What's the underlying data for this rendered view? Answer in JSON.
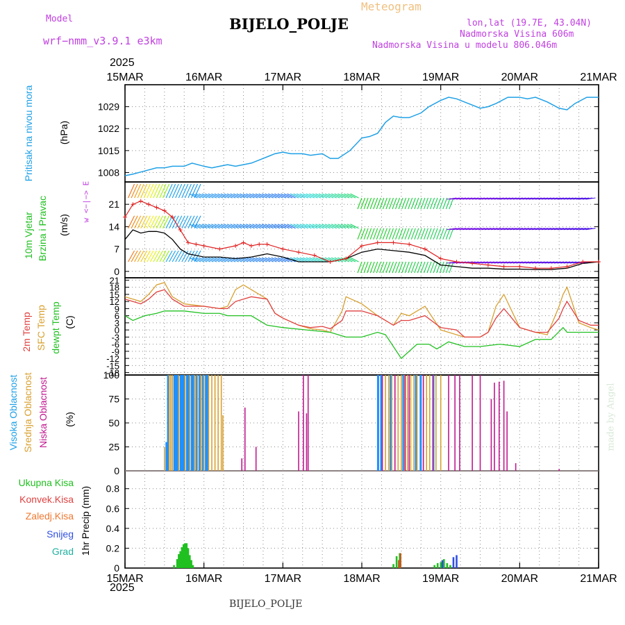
{
  "header": {
    "model_label": "Model",
    "model_name": "wrf−nmm_v3.9.1  e3km",
    "station": "BIJELO_POLJE",
    "chart_kind": "Meteogram",
    "lonlat": "lon,lat (19.7E, 43.04N)",
    "elevation": "Nadmorska Visina 606m",
    "model_elevation": "Nadmorska Visina u modelu 806.046m",
    "footer_station": "BIJELO_POLJE",
    "credit": "made by Angel"
  },
  "time_axis": {
    "year": "2025",
    "ticks": [
      "15MAR",
      "16MAR",
      "17MAR",
      "18MAR",
      "19MAR",
      "20MAR",
      "21MAR"
    ]
  },
  "colors": {
    "pressure": "#1ea0e6",
    "wind_speed": "#000000",
    "gust": "#e02020",
    "temp2m": "#e04040",
    "sfc": "#d8a030",
    "dew": "#20c020",
    "cloud_high": "#1e90ff",
    "cloud_mid": "#d8a030",
    "cloud_low": "#c01890",
    "precip_total": "#20c020",
    "precip_conv": "#e04040",
    "precip_snow": "#3050e0",
    "precip_grad": "#20b0a0"
  },
  "panels": {
    "pressure": {
      "label1": "Pritisak na nivou mora",
      "unit": "(hPa)"
    },
    "wind": {
      "label1": "10m Vjetar",
      "label2": "Brzina i Pravac",
      "unit": "(m/s)",
      "compass": "w <−|−> E"
    },
    "temp": {
      "label1": "2m Temp",
      "label2": "SFC Temp",
      "label3": "dewpt Temp",
      "unit": "(C)"
    },
    "cloud": {
      "label1": "Visoka Oblacnost",
      "label2": "Srednja Oblacnost",
      "label3": "Niska Oblacnost",
      "unit": "(%)"
    },
    "precip": {
      "legend": [
        "Ukupna Kisa",
        "Konvek.Kisa",
        "Zaledj.Kisa",
        "Snijeg",
        "Grad"
      ],
      "unit": "1hr Precip (mm)"
    }
  },
  "chart_data": [
    {
      "type": "line",
      "title": "Pritisak na nivou mora",
      "ylabel": "(hPa)",
      "x_unit": "days since 15MAR 00Z",
      "xlim": [
        0,
        6
      ],
      "yticks": [
        1008,
        1015,
        1022,
        1029
      ],
      "ylim": [
        1005,
        1036
      ],
      "series": [
        {
          "name": "MSLP",
          "x": [
            0,
            0.1,
            0.25,
            0.4,
            0.5,
            0.6,
            0.75,
            0.85,
            1.0,
            1.1,
            1.2,
            1.3,
            1.4,
            1.6,
            1.8,
            1.9,
            2.0,
            2.1,
            2.25,
            2.35,
            2.5,
            2.6,
            2.7,
            2.85,
            3.0,
            3.1,
            3.2,
            3.3,
            3.4,
            3.5,
            3.6,
            3.75,
            3.85,
            4.0,
            4.1,
            4.2,
            4.35,
            4.5,
            4.6,
            4.7,
            4.85,
            5.0,
            5.1,
            5.2,
            5.35,
            5.5,
            5.6,
            5.7,
            5.85,
            6.0
          ],
          "values": [
            1007,
            1007.5,
            1008.5,
            1009.5,
            1009.5,
            1010,
            1010,
            1011,
            1010,
            1009.5,
            1010,
            1010.5,
            1010,
            1011,
            1013,
            1014,
            1014.5,
            1014,
            1014,
            1013.5,
            1014,
            1012.5,
            1012.5,
            1015,
            1019,
            1019.5,
            1020.5,
            1024,
            1026,
            1025.5,
            1025.5,
            1027,
            1029,
            1031,
            1032,
            1031.5,
            1030,
            1028.5,
            1029,
            1030,
            1032,
            1032,
            1031.5,
            1032,
            1030.5,
            1028.5,
            1028,
            1030,
            1032,
            1032
          ]
        }
      ]
    },
    {
      "type": "line",
      "title": "10m Vjetar Brzina i Pravac",
      "ylabel": "(m/s)",
      "x_unit": "days since 15MAR 00Z",
      "xlim": [
        0,
        6
      ],
      "yticks": [
        0,
        7,
        14,
        21
      ],
      "ylim": [
        -2,
        28
      ],
      "series": [
        {
          "name": "speed",
          "x": [
            0,
            0.1,
            0.2,
            0.3,
            0.4,
            0.5,
            0.6,
            0.7,
            0.8,
            0.9,
            1.0,
            1.2,
            1.4,
            1.6,
            1.8,
            2.0,
            2.2,
            2.4,
            2.6,
            2.8,
            3.0,
            3.2,
            3.4,
            3.6,
            3.8,
            4.0,
            4.2,
            4.4,
            4.6,
            4.8,
            5.0,
            5.2,
            5.4,
            5.6,
            5.8,
            6.0
          ],
          "values": [
            10,
            13,
            12,
            12.5,
            12.5,
            12,
            10,
            7,
            5.5,
            5,
            4.5,
            4.5,
            4,
            4.5,
            5.5,
            4.5,
            3,
            3,
            3,
            4,
            6,
            7,
            6.5,
            6,
            5,
            2,
            1.5,
            1,
            1,
            0.7,
            0.7,
            0.6,
            0.6,
            1,
            2.5,
            3
          ]
        },
        {
          "name": "gust",
          "x": [
            0,
            0.1,
            0.2,
            0.3,
            0.4,
            0.5,
            0.6,
            0.7,
            0.8,
            0.9,
            1.0,
            1.2,
            1.4,
            1.5,
            1.6,
            1.7,
            1.8,
            2.0,
            2.2,
            2.4,
            2.6,
            2.8,
            3.0,
            3.2,
            3.4,
            3.6,
            3.8,
            4.0,
            4.2,
            4.4,
            4.6,
            4.8,
            5.0,
            5.2,
            5.4,
            5.6,
            5.8,
            6.0
          ],
          "values": [
            17,
            21,
            22,
            21,
            20,
            19,
            17,
            13,
            9,
            8.5,
            8,
            7,
            8,
            9,
            8,
            8.5,
            8.5,
            7,
            6,
            5,
            3,
            4,
            8,
            9,
            9,
            8.5,
            7,
            4,
            3,
            2.5,
            2,
            1.5,
            1.5,
            1,
            1,
            1.5,
            3,
            3
          ]
        }
      ]
    },
    {
      "type": "line",
      "title": "2m Temp / SFC Temp / dewpt Temp",
      "ylabel": "(C)",
      "x_unit": "days since 15MAR 00Z",
      "xlim": [
        0,
        6
      ],
      "yticks": [
        21,
        18,
        15,
        12,
        9,
        6,
        3,
        0,
        -3,
        -6,
        -9,
        -12,
        -15,
        -18
      ],
      "ylim": [
        -19,
        22
      ],
      "series": [
        {
          "name": "2m Temp",
          "x": [
            0,
            0.1,
            0.2,
            0.3,
            0.4,
            0.5,
            0.6,
            0.75,
            1.0,
            1.2,
            1.3,
            1.4,
            1.5,
            1.6,
            1.8,
            1.9,
            2.0,
            2.2,
            2.35,
            2.5,
            2.6,
            2.75,
            2.8,
            3.0,
            3.2,
            3.35,
            3.4,
            3.5,
            3.6,
            3.7,
            3.8,
            4.0,
            4.2,
            4.3,
            4.4,
            4.5,
            4.6,
            4.7,
            4.8,
            5.0,
            5.2,
            5.35,
            5.5,
            5.55,
            5.6,
            5.75,
            5.9,
            6.0
          ],
          "values": [
            13,
            12,
            11,
            13,
            16,
            17,
            13,
            10,
            10,
            9,
            9,
            12,
            13,
            14,
            13,
            7,
            5,
            2,
            1,
            1.5,
            0.5,
            4,
            8,
            8,
            6,
            3,
            2,
            4,
            4,
            5,
            6,
            1,
            0,
            -3,
            -3,
            -3,
            -1,
            5,
            9,
            1,
            -1,
            -1,
            5,
            9,
            12,
            4,
            2,
            2
          ]
        },
        {
          "name": "SFC Temp",
          "x": [
            0,
            0.1,
            0.2,
            0.3,
            0.4,
            0.5,
            0.6,
            0.75,
            1.0,
            1.2,
            1.3,
            1.4,
            1.5,
            1.6,
            1.8,
            1.9,
            2.0,
            2.2,
            2.35,
            2.5,
            2.6,
            2.75,
            2.8,
            3.0,
            3.2,
            3.35,
            3.4,
            3.5,
            3.6,
            3.7,
            3.8,
            4.0,
            4.2,
            4.3,
            4.4,
            4.5,
            4.6,
            4.7,
            4.8,
            5.0,
            5.2,
            5.35,
            5.5,
            5.55,
            5.6,
            5.75,
            5.9,
            6.0
          ],
          "values": [
            14,
            13,
            12,
            15,
            19,
            20,
            14,
            11,
            10,
            9,
            10,
            17,
            19,
            17,
            13,
            7,
            5,
            2,
            0.5,
            0,
            -1,
            8,
            14,
            11,
            6,
            3,
            2,
            7,
            6,
            8,
            10,
            0,
            -2,
            -3,
            -3,
            -3,
            -1,
            10,
            15,
            1,
            -1,
            -2,
            10,
            15,
            18,
            3,
            1,
            0
          ]
        },
        {
          "name": "dewpt Temp",
          "x": [
            0,
            0.1,
            0.25,
            0.4,
            0.5,
            0.75,
            1.0,
            1.2,
            1.3,
            1.4,
            1.6,
            1.8,
            2.0,
            2.3,
            2.6,
            2.8,
            3.0,
            3.2,
            3.3,
            3.5,
            3.7,
            3.85,
            3.95,
            4.1,
            4.3,
            4.5,
            4.75,
            5.0,
            5.2,
            5.4,
            5.55,
            5.6,
            5.7,
            5.8,
            6.0
          ],
          "values": [
            6,
            4,
            6,
            7,
            8,
            8,
            7,
            7,
            6,
            6,
            6,
            2,
            1,
            0,
            -1,
            -3,
            -3,
            -1,
            -2,
            -12,
            -6,
            -6,
            -8,
            -5,
            -7,
            -7,
            -6,
            -7,
            -4,
            -4,
            1,
            -1,
            -1,
            -1,
            -1
          ]
        }
      ]
    },
    {
      "type": "bar",
      "title": "Visoka / Srednja / Niska Oblacnost",
      "ylabel": "(%)",
      "x_unit": "days since 15MAR 00Z",
      "xlim": [
        0,
        6
      ],
      "yticks": [
        0,
        25,
        50,
        75,
        100
      ],
      "ylim": [
        0,
        100
      ],
      "series": [
        {
          "name": "Visoka Oblacnost",
          "x": [
            0.52,
            0.54,
            0.62,
            0.64,
            0.66,
            0.7,
            0.72,
            0.74,
            0.78,
            0.8,
            0.84,
            0.86,
            0.9,
            0.94,
            0.98,
            1.02,
            1.04,
            3.2,
            3.24,
            3.36,
            3.52,
            3.68,
            3.74,
            3.9
          ],
          "values": [
            30,
            100,
            100,
            100,
            100,
            100,
            100,
            100,
            100,
            100,
            100,
            100,
            100,
            100,
            100,
            100,
            100,
            100,
            100,
            100,
            100,
            100,
            100,
            100
          ]
        },
        {
          "name": "Srednja Oblacnost",
          "x": [
            0.5,
            0.56,
            0.58,
            0.6,
            0.68,
            0.76,
            0.82,
            0.88,
            0.92,
            0.96,
            1.0,
            1.06,
            1.1,
            1.14,
            1.18,
            1.22,
            1.24,
            3.3,
            3.34,
            3.38,
            3.42,
            3.46,
            3.5,
            3.54,
            3.58,
            3.62,
            3.66,
            3.7,
            3.78,
            3.82,
            3.86,
            3.94,
            4.0
          ],
          "values": [
            25,
            100,
            100,
            100,
            100,
            100,
            100,
            100,
            100,
            100,
            100,
            100,
            100,
            100,
            100,
            100,
            58,
            100,
            100,
            100,
            100,
            100,
            100,
            100,
            100,
            100,
            100,
            100,
            100,
            100,
            100,
            100,
            100
          ]
        },
        {
          "name": "Niska Oblacnost",
          "x": [
            1.48,
            1.52,
            1.66,
            2.2,
            2.26,
            2.3,
            2.32,
            3.26,
            3.42,
            3.55,
            3.6,
            3.78,
            3.9,
            4.1,
            4.18,
            4.24,
            4.4,
            4.5,
            4.64,
            4.68,
            4.74,
            4.8,
            4.84,
            4.95,
            5.5
          ],
          "values": [
            13,
            66,
            25,
            62,
            100,
            60,
            100,
            100,
            100,
            100,
            100,
            100,
            100,
            100,
            100,
            100,
            100,
            100,
            75,
            92,
            93,
            94,
            62,
            8,
            2
          ]
        }
      ]
    },
    {
      "type": "bar",
      "title": "1hr Precip",
      "ylabel": "1hr Precip (mm)",
      "x_unit": "days since 15MAR 00Z",
      "xlim": [
        0,
        6
      ],
      "yticks": [
        0,
        0.2,
        0.4,
        0.6,
        0.8
      ],
      "ylim": [
        0,
        0.98
      ],
      "series": [
        {
          "name": "Ukupna Kisa",
          "x": [
            0.62,
            0.66,
            0.68,
            0.7,
            0.72,
            0.74,
            0.76,
            0.78,
            0.8,
            0.82,
            0.84,
            0.86,
            3.4,
            3.44,
            3.48,
            3.92,
            3.96,
            4.0,
            4.04,
            4.08,
            4.12
          ],
          "values": [
            0.03,
            0.09,
            0.14,
            0.17,
            0.21,
            0.24,
            0.25,
            0.25,
            0.2,
            0.13,
            0.08,
            0.03,
            0.04,
            0.12,
            0.15,
            0.03,
            0.05,
            0.06,
            0.09,
            0.05,
            0.03
          ]
        },
        {
          "name": "Konvek.Kisa",
          "x": [
            3.46,
            3.48
          ],
          "values": [
            0.08,
            0.15
          ]
        },
        {
          "name": "Zaledj.Kisa",
          "x": [],
          "values": []
        },
        {
          "name": "Snijeg",
          "x": [
            4.02,
            4.16,
            4.2
          ],
          "values": [
            0.08,
            0.11,
            0.13
          ]
        },
        {
          "name": "Grad",
          "x": [],
          "values": []
        }
      ]
    }
  ]
}
